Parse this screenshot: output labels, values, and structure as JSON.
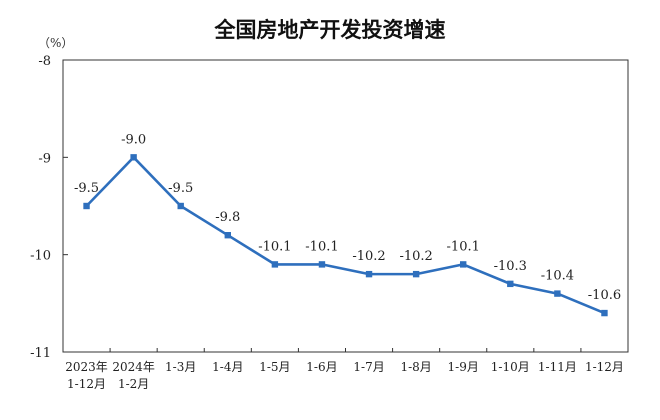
{
  "chart_data": {
    "type": "line",
    "title": "全国房地产开发投资增速",
    "unit_label": "（%）",
    "categories": [
      [
        "2023年",
        "1-12月"
      ],
      [
        "2024年",
        "1-2月"
      ],
      [
        "1-3月"
      ],
      [
        "1-4月"
      ],
      [
        "1-5月"
      ],
      [
        "1-6月"
      ],
      [
        "1-7月"
      ],
      [
        "1-8月"
      ],
      [
        "1-9月"
      ],
      [
        "1-10月"
      ],
      [
        "1-11月"
      ],
      [
        "1-12月"
      ]
    ],
    "series": [
      {
        "values": [
          -9.5,
          -9.0,
          -9.5,
          -9.8,
          -10.1,
          -10.1,
          -10.2,
          -10.2,
          -10.1,
          -10.3,
          -10.4,
          -10.6
        ],
        "labels": [
          "-9.5",
          "-9.0",
          "-9.5",
          "-9.8",
          "-10.1",
          "-10.1",
          "-10.2",
          "-10.2",
          "-10.1",
          "-10.3",
          "-10.4",
          "-10.6"
        ],
        "color": "#2e6fbd"
      }
    ],
    "ylim": [
      -11,
      -8
    ],
    "yticks": [
      "-8",
      "-9",
      "-10",
      "-11"
    ],
    "ytick_values": [
      -8,
      -9,
      -10,
      -11
    ],
    "grid": false,
    "legend": "none"
  }
}
